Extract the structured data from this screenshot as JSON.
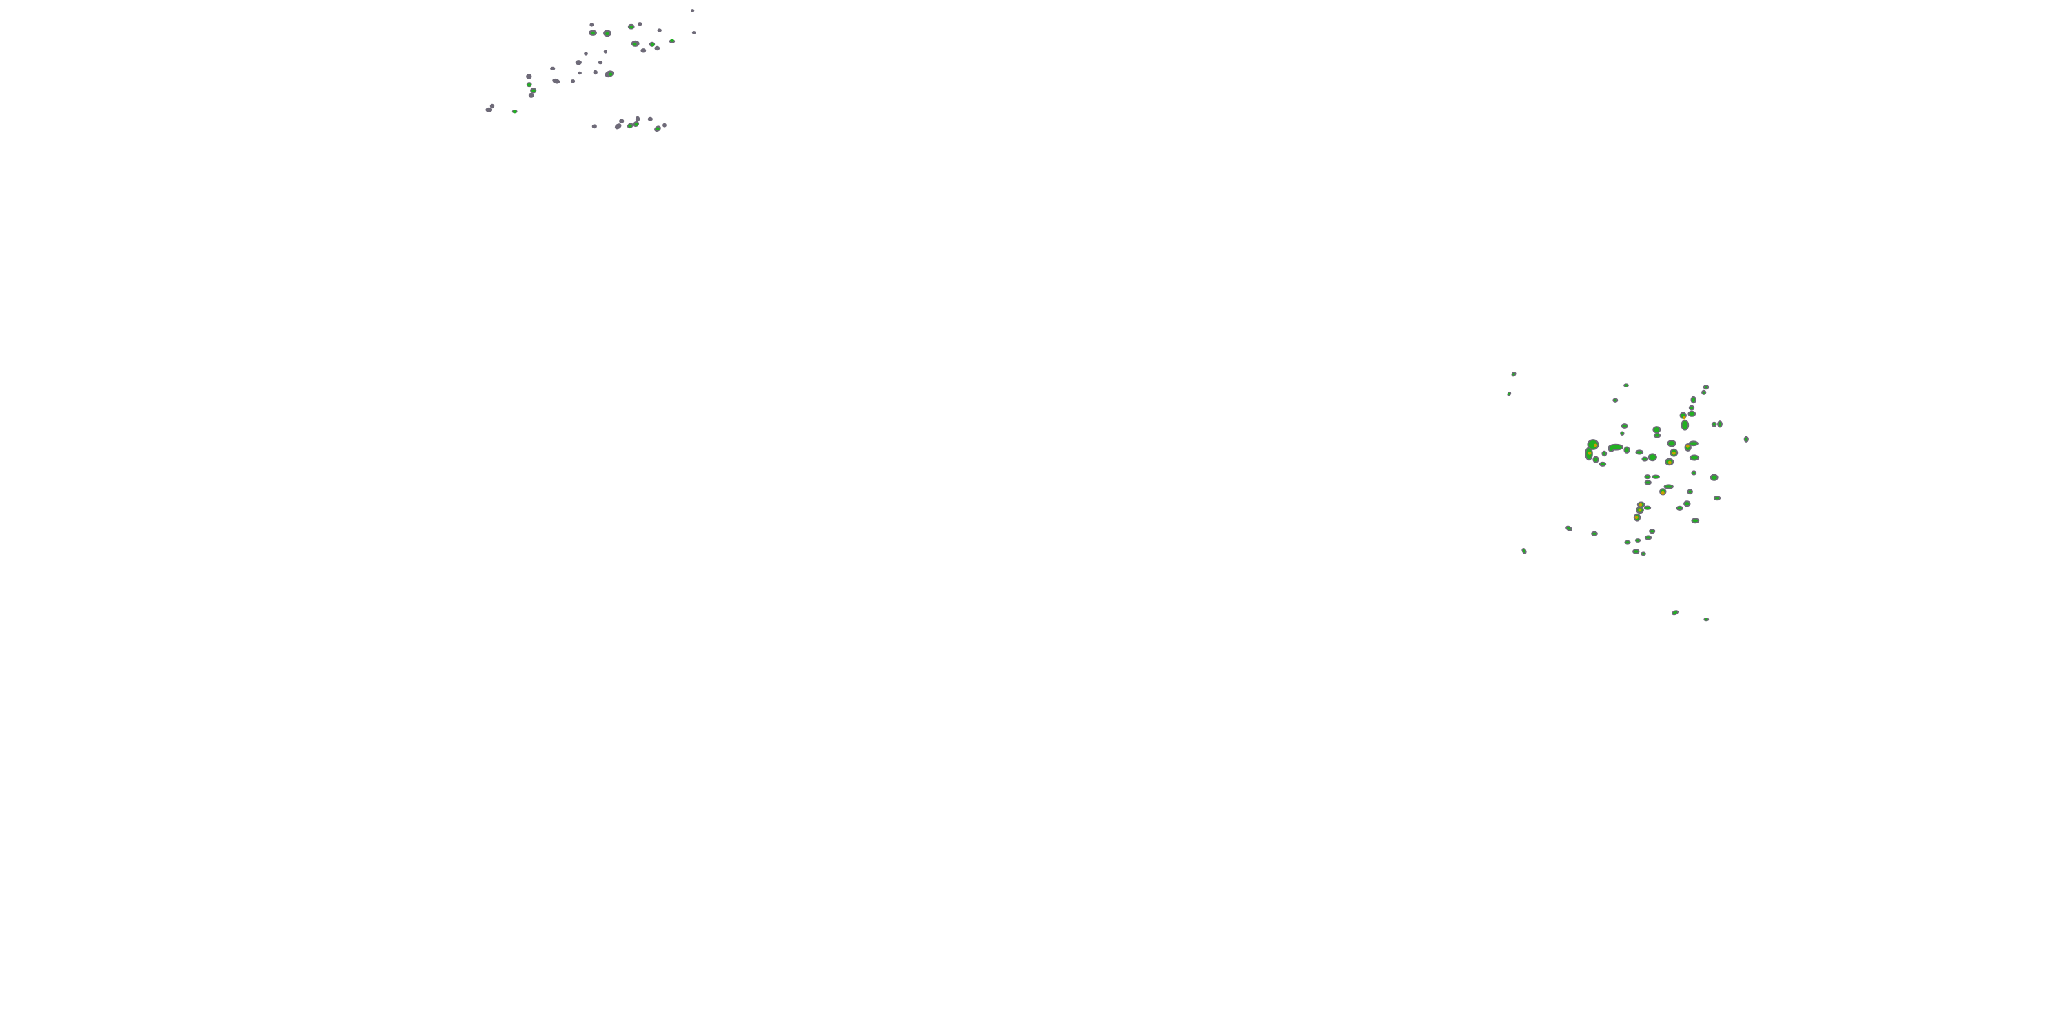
{
  "map": {
    "layer": "radar-precipitation-overlay",
    "colors": {
      "light": "#6e6a78",
      "moderate": "#22b022",
      "heavy": "#c8a000",
      "background": "#ffffff"
    }
  }
}
